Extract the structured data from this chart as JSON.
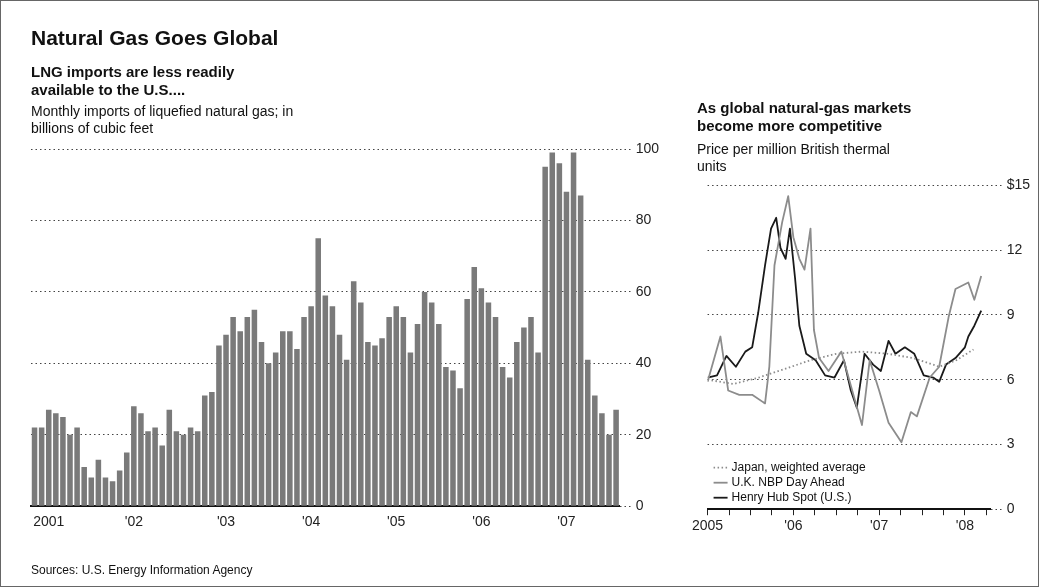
{
  "chart_data": [
    {
      "type": "bar",
      "title": "Natural Gas Goes Global",
      "subtitle": "LNG imports are less readily available to the U.S....",
      "ylabel": "Monthly imports of liquefied natural gas; in billions of cubic feet",
      "categories": [
        null,
        null,
        "2001",
        null,
        null,
        null,
        null,
        null,
        null,
        null,
        null,
        null,
        null,
        null,
        "'02",
        null,
        null,
        null,
        null,
        null,
        null,
        null,
        null,
        null,
        null,
        null,
        null,
        "'03",
        null,
        null,
        null,
        null,
        null,
        null,
        null,
        null,
        null,
        null,
        null,
        "'04",
        null,
        null,
        null,
        null,
        null,
        null,
        null,
        null,
        null,
        null,
        null,
        "'05",
        null,
        null,
        null,
        null,
        null,
        null,
        null,
        null,
        null,
        null,
        null,
        "'06",
        null,
        null,
        null,
        null,
        null,
        null,
        null,
        null,
        null,
        null,
        null,
        "'07",
        null,
        null,
        null,
        null,
        null,
        null,
        null
      ],
      "series": [
        {
          "color": "#7a7a7a",
          "values": [
            22,
            22,
            27,
            26,
            25,
            20,
            22,
            11,
            8,
            13,
            8,
            7,
            10,
            15,
            28,
            26,
            21,
            22,
            17,
            27,
            21,
            20,
            22,
            21,
            31,
            32,
            45,
            48,
            53,
            49,
            53,
            55,
            46,
            40,
            43,
            49,
            49,
            44,
            53,
            56,
            75,
            59,
            56,
            48,
            41,
            63,
            57,
            46,
            45,
            47,
            53,
            56,
            53,
            43,
            51,
            60,
            57,
            51,
            39,
            38,
            33,
            58,
            67,
            61,
            57,
            53,
            39,
            36,
            46,
            50,
            53,
            43,
            95,
            99,
            96,
            88,
            99,
            87,
            41,
            31,
            26,
            20,
            27
          ]
        }
      ],
      "ylim": [
        0,
        100
      ],
      "yticks": [
        0,
        20,
        40,
        60,
        80,
        100
      ],
      "grid": "y",
      "annotations": [
        "Sources: U.S. Energy Information Agency"
      ]
    },
    {
      "type": "line",
      "title": "As global natural-gas markets become more competitive",
      "ylabel": "Price per million British thermal units",
      "series": [
        {
          "name": "Japan, weighted average",
          "color": "#8c8c8c",
          "line_style": "dotted",
          "x": [
            2005.0,
            2005.3,
            2005.6,
            2005.9,
            2006.2,
            2006.5,
            2006.8,
            2007.1,
            2007.4,
            2007.7,
            2007.9,
            2008.1
          ],
          "values": [
            6.0,
            5.8,
            6.1,
            6.5,
            6.9,
            7.2,
            7.3,
            7.2,
            7.0,
            6.6,
            6.9,
            7.4
          ]
        },
        {
          "name": "U.K. NBP Day Ahead",
          "color": "#8c8c8c",
          "line_style": "solid",
          "x": [
            2005.0,
            2005.15,
            2005.24,
            2005.37,
            2005.52,
            2005.67,
            2005.72,
            2005.78,
            2005.87,
            2005.94,
            2006.0,
            2006.07,
            2006.13,
            2006.2,
            2006.24,
            2006.3,
            2006.41,
            2006.56,
            2006.7,
            2006.8,
            2006.89,
            2007.0,
            2007.11,
            2007.26,
            2007.37,
            2007.44,
            2007.59,
            2007.7,
            2007.81,
            2007.89,
            2008.04,
            2008.11,
            2008.19
          ],
          "values": [
            5.9,
            8.0,
            5.5,
            5.3,
            5.3,
            4.9,
            6.6,
            11.3,
            13.3,
            14.5,
            12.6,
            11.6,
            11.1,
            13.0,
            8.3,
            7.0,
            6.4,
            7.3,
            5.3,
            3.9,
            6.9,
            5.5,
            4.0,
            3.1,
            4.5,
            4.3,
            6.1,
            6.6,
            8.9,
            10.2,
            10.5,
            9.7,
            10.8
          ]
        },
        {
          "name": "Henry Hub Spot (U.S.)",
          "color": "#1a1a1a",
          "line_style": "solid",
          "x": [
            2005.0,
            2005.11,
            2005.22,
            2005.33,
            2005.44,
            2005.52,
            2005.59,
            2005.67,
            2005.74,
            2005.8,
            2005.85,
            2005.91,
            2005.96,
            2006.02,
            2006.07,
            2006.15,
            2006.26,
            2006.37,
            2006.48,
            2006.59,
            2006.67,
            2006.74,
            2006.83,
            2006.93,
            2007.02,
            2007.11,
            2007.19,
            2007.3,
            2007.41,
            2007.52,
            2007.63,
            2007.7,
            2007.78,
            2007.89,
            2008.0,
            2008.04,
            2008.11,
            2008.19
          ],
          "values": [
            6.1,
            6.2,
            7.1,
            6.6,
            7.3,
            7.5,
            9.1,
            11.3,
            13.0,
            13.5,
            12.1,
            11.6,
            13.0,
            10.7,
            8.5,
            7.2,
            6.9,
            6.2,
            6.1,
            6.9,
            5.5,
            4.7,
            7.2,
            6.7,
            6.4,
            7.8,
            7.2,
            7.5,
            7.2,
            6.2,
            6.1,
            5.9,
            6.7,
            7.0,
            7.5,
            8.0,
            8.5,
            9.2
          ]
        }
      ],
      "xlim": [
        2005,
        2008.3
      ],
      "xticks": [
        {
          "value": 2005,
          "label": "2005"
        },
        {
          "value": 2005.25,
          "label": null
        },
        {
          "value": 2005.5,
          "label": null
        },
        {
          "value": 2005.75,
          "label": null
        },
        {
          "value": 2006,
          "label": "'06"
        },
        {
          "value": 2006.25,
          "label": null
        },
        {
          "value": 2006.5,
          "label": null
        },
        {
          "value": 2006.75,
          "label": null
        },
        {
          "value": 2007,
          "label": "'07"
        },
        {
          "value": 2007.25,
          "label": null
        },
        {
          "value": 2007.5,
          "label": null
        },
        {
          "value": 2007.75,
          "label": null
        },
        {
          "value": 2008,
          "label": "'08"
        },
        {
          "value": 2008.25,
          "label": null
        }
      ],
      "ylim": [
        0,
        15
      ],
      "yticks": [
        0,
        3,
        6,
        9,
        12,
        {
          "value": 15,
          "label": "$15"
        }
      ],
      "grid": "y",
      "legend": "bottom left"
    }
  ]
}
